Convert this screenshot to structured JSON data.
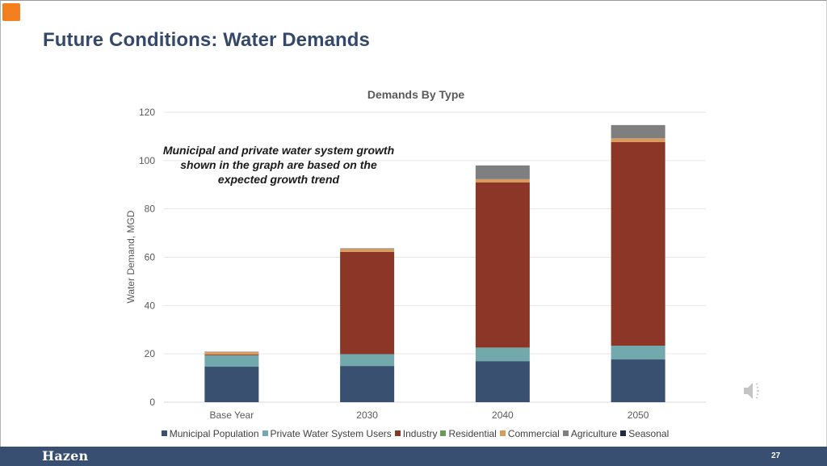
{
  "slide": {
    "title": "Future Conditions: Water Demands",
    "annotation": "Municipal and private water system growth shown in the graph are based on the expected growth trend",
    "footer_logo": "Hazen",
    "page_number": "27",
    "accent_color": "#f47f1e",
    "footer_color": "#384f71",
    "audio_icon": "speaker-icon"
  },
  "chart_data": {
    "type": "bar",
    "stacked": true,
    "title": "Demands By Type",
    "xlabel": "",
    "ylabel": "Water Demand, MGD",
    "ylim": [
      0,
      120
    ],
    "yticks": [
      0,
      20,
      40,
      60,
      80,
      100,
      120
    ],
    "grid": true,
    "legend_position": "bottom",
    "categories": [
      "Base Year",
      "2030",
      "2040",
      "2050"
    ],
    "series": [
      {
        "name": "Municipal Population",
        "color": "#3a5070",
        "values": [
          14.7,
          15.0,
          17.0,
          17.7
        ]
      },
      {
        "name": "Private Water System Users",
        "color": "#72a9ad",
        "values": [
          4.7,
          4.9,
          5.6,
          5.7
        ]
      },
      {
        "name": "Industry",
        "color": "#8b3626",
        "values": [
          0.3,
          42.3,
          68.4,
          84.3
        ]
      },
      {
        "name": "Residential",
        "color": "#6a9a58",
        "values": [
          0,
          0,
          0,
          0
        ]
      },
      {
        "name": "Commercial",
        "color": "#d99a5c",
        "values": [
          1.0,
          1.2,
          1.3,
          1.5
        ]
      },
      {
        "name": "Agriculture",
        "color": "#7f7f7f",
        "values": [
          0.2,
          0.3,
          5.7,
          5.5
        ]
      },
      {
        "name": "Seasonal",
        "color": "#1f2a3c",
        "values": [
          0,
          0,
          0,
          0
        ]
      }
    ]
  }
}
